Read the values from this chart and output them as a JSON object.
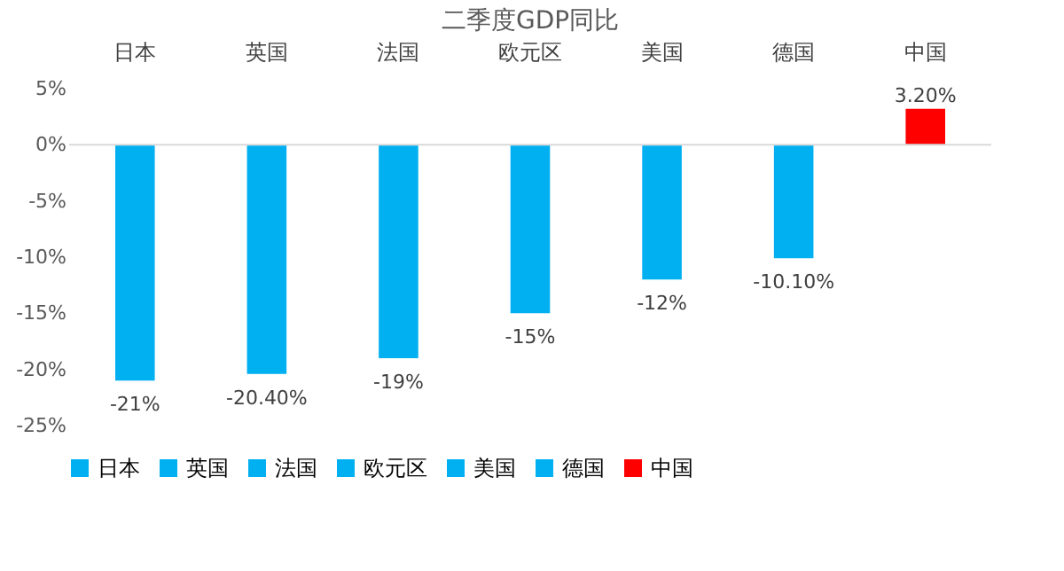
{
  "chart_data": {
    "type": "bar",
    "title": "二季度GDP同比",
    "stacked": true,
    "categories": [
      "日本",
      "英国",
      "法国",
      "欧元区",
      "美国",
      "德国",
      "中国"
    ],
    "series": [
      {
        "name": "日本",
        "color": "#00b0f0",
        "values": [
          -21,
          null,
          null,
          null,
          null,
          null,
          null
        ],
        "value_labels": [
          "-21%",
          null,
          null,
          null,
          null,
          null,
          null
        ]
      },
      {
        "name": "英国",
        "color": "#00b0f0",
        "values": [
          null,
          -20.4,
          null,
          null,
          null,
          null,
          null
        ],
        "value_labels": [
          null,
          "-20.40%",
          null,
          null,
          null,
          null,
          null
        ]
      },
      {
        "name": "法国",
        "color": "#00b0f0",
        "values": [
          null,
          null,
          -19,
          null,
          null,
          null,
          null
        ],
        "value_labels": [
          null,
          null,
          "-19%",
          null,
          null,
          null,
          null
        ]
      },
      {
        "name": "欧元区",
        "color": "#00b0f0",
        "values": [
          null,
          null,
          null,
          -15,
          null,
          null,
          null
        ],
        "value_labels": [
          null,
          null,
          null,
          "-15%",
          null,
          null,
          null
        ]
      },
      {
        "name": "美国",
        "color": "#00b0f0",
        "values": [
          null,
          null,
          null,
          null,
          -12,
          null,
          null
        ],
        "value_labels": [
          null,
          null,
          null,
          null,
          "-12%",
          null,
          null
        ]
      },
      {
        "name": "德国",
        "color": "#00b0f0",
        "values": [
          null,
          null,
          null,
          null,
          null,
          -10.1,
          null
        ],
        "value_labels": [
          null,
          null,
          null,
          null,
          null,
          "-10.10%",
          null
        ]
      },
      {
        "name": "中国",
        "color": "#ff0000",
        "values": [
          null,
          null,
          null,
          null,
          null,
          null,
          3.2
        ],
        "value_labels": [
          null,
          null,
          null,
          null,
          null,
          null,
          "3.20%"
        ]
      }
    ],
    "ylim": [
      -25,
      5
    ],
    "yticks": [
      {
        "value": 5,
        "label": "5%"
      },
      {
        "value": 0,
        "label": "0%"
      },
      {
        "value": -5,
        "label": "-5%"
      },
      {
        "value": -10,
        "label": "-10%"
      },
      {
        "value": -15,
        "label": "-15%"
      },
      {
        "value": -20,
        "label": "-20%"
      },
      {
        "value": -25,
        "label": "-25%"
      }
    ],
    "ref_lines": [
      {
        "axis": "y",
        "value": 0,
        "color": "#d9d9d9"
      }
    ],
    "legend": "bottom"
  }
}
